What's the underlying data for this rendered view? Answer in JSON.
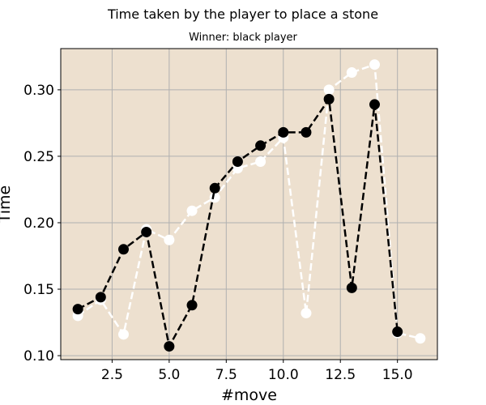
{
  "chart_data": {
    "type": "line",
    "title": "Time taken by the player to place a stone",
    "subtitle": "Winner: black player",
    "xlabel": "#move",
    "ylabel": "Time",
    "xlim": [
      0.25,
      16.75
    ],
    "ylim": [
      0.097,
      0.331
    ],
    "xticks": [
      2.5,
      5.0,
      7.5,
      10.0,
      12.5,
      15.0
    ],
    "xtick_labels": [
      "2.5",
      "5.0",
      "7.5",
      "10.0",
      "12.5",
      "15.0"
    ],
    "yticks": [
      0.1,
      0.15,
      0.2,
      0.25,
      0.3
    ],
    "ytick_labels": [
      "0.10",
      "0.15",
      "0.20",
      "0.25",
      "0.30"
    ],
    "grid": true,
    "background": "#ede0cf",
    "series": [
      {
        "color": "#000000",
        "x": [
          1,
          2,
          3,
          4,
          5,
          6,
          7,
          8,
          9,
          10,
          11,
          12,
          13,
          14,
          15
        ],
        "y": [
          0.135,
          0.144,
          0.18,
          0.193,
          0.107,
          0.138,
          0.226,
          0.246,
          0.258,
          0.268,
          0.268,
          0.293,
          0.151,
          0.289,
          0.118
        ]
      },
      {
        "color": "#ffffff",
        "x": [
          1,
          2,
          3,
          4,
          5,
          6,
          7,
          8,
          9,
          10,
          11,
          12,
          13,
          14,
          15,
          16
        ],
        "y": [
          0.13,
          0.142,
          0.116,
          0.195,
          0.187,
          0.209,
          0.219,
          0.241,
          0.246,
          0.264,
          0.132,
          0.3,
          0.313,
          0.319,
          0.117,
          0.113
        ]
      }
    ]
  }
}
